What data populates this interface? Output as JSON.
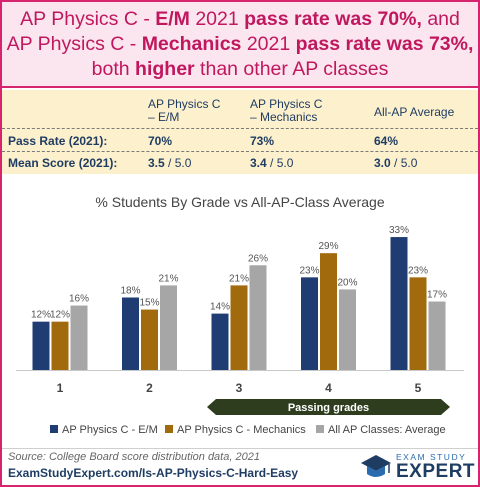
{
  "header": {
    "line1": {
      "a": "AP Physics C - ",
      "b": "E/M",
      "c": " 2021 ",
      "d": "pass rate was 70%,",
      "e": " and"
    },
    "line2": {
      "a": "AP Physics C - ",
      "b": "Mechanics",
      "c": " 2021 ",
      "d": "pass rate was 73%,"
    },
    "line3": {
      "a": "both ",
      "b": "higher",
      "c": " than other AP classes"
    }
  },
  "stats_table": {
    "col_em": [
      "AP Physics C",
      "– E/M"
    ],
    "col_mech": [
      "AP Physics C",
      "– Mechanics"
    ],
    "col_avg": "All-AP Average",
    "pass_rate_label": "Pass Rate (2021):",
    "mean_score_label": "Mean Score (2021):",
    "pass_rate": {
      "em": "70%",
      "mech": "73%",
      "avg": "64%"
    },
    "mean_score": {
      "em": "3.5",
      "mech": "3.4",
      "avg": "3.0",
      "of": " / 5.0"
    }
  },
  "chart_data": {
    "type": "bar",
    "title": "% Students By Grade vs All-AP-Class Average",
    "categories": [
      "1",
      "2",
      "3",
      "4",
      "5"
    ],
    "series": [
      {
        "name": "AP Physics C - E/M",
        "color": "#1f3d73",
        "values": [
          12,
          18,
          14,
          23,
          33
        ]
      },
      {
        "name": "AP Physics C - Mechanics",
        "color": "#a16a0d",
        "values": [
          12,
          15,
          21,
          29,
          23
        ]
      },
      {
        "name": "All AP Classes: Average",
        "color": "#a6a6a6",
        "values": [
          16,
          21,
          26,
          20,
          17
        ]
      }
    ],
    "value_suffix": "%",
    "ylim": [
      0,
      35
    ],
    "annotation": "Passing grades",
    "annotation_range": [
      "3",
      "5"
    ],
    "grid": false,
    "legend_position": "bottom"
  },
  "footer": {
    "source": "Source: College Board score distribution data, 2021",
    "url": "ExamStudyExpert.com/Is-AP-Physics-C-Hard-Easy",
    "logo_small": "EXAM STUDY",
    "logo_big": "EXPERT"
  }
}
